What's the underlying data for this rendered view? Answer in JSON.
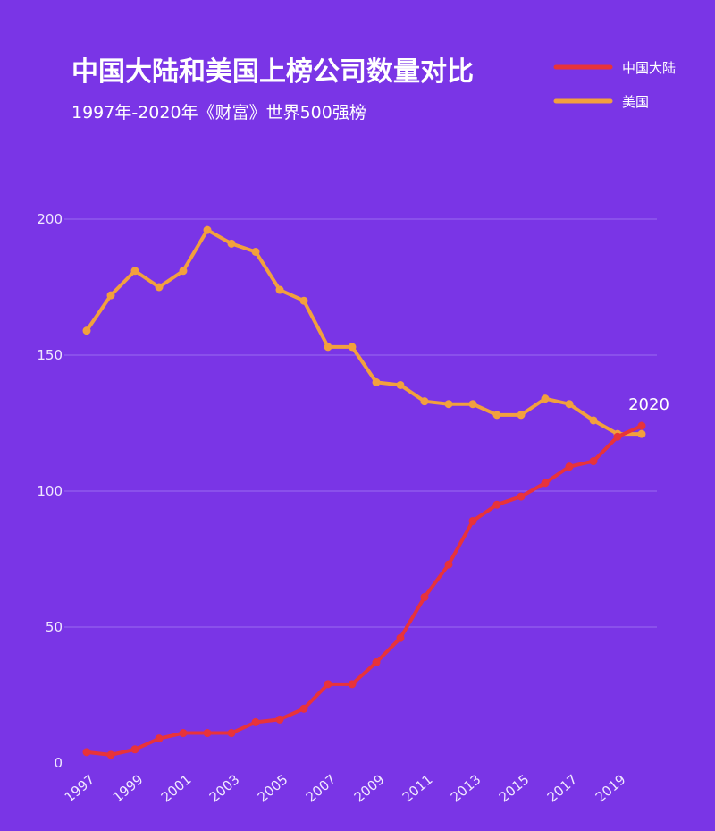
{
  "chart_data": {
    "type": "line",
    "title": "中国大陆和美国上榜公司数量对比",
    "subtitle": "1997年-2020年《财富》世界500强榜",
    "x": [
      1997,
      1998,
      1999,
      2000,
      2001,
      2002,
      2003,
      2004,
      2005,
      2006,
      2007,
      2008,
      2009,
      2010,
      2011,
      2012,
      2013,
      2014,
      2015,
      2016,
      2017,
      2018,
      2019,
      2020
    ],
    "x_tick_labels": [
      "1997",
      "1999",
      "2001",
      "2003",
      "2005",
      "2007",
      "2009",
      "2011",
      "2013",
      "2015",
      "2017",
      "2019"
    ],
    "y_ticks": [
      0,
      50,
      100,
      150,
      200
    ],
    "ylim": [
      0,
      205
    ],
    "grid": true,
    "legend_position": "top-right",
    "annotation": "2020",
    "series": [
      {
        "name": "中国大陆",
        "color": "#e8333a",
        "values": [
          4,
          3,
          5,
          9,
          11,
          11,
          11,
          15,
          16,
          20,
          29,
          29,
          37,
          46,
          61,
          73,
          89,
          95,
          98,
          103,
          109,
          111,
          120,
          124
        ]
      },
      {
        "name": "美国",
        "color": "#f2a03d",
        "values": [
          159,
          172,
          181,
          175,
          181,
          196,
          191,
          188,
          174,
          170,
          153,
          153,
          140,
          139,
          133,
          132,
          132,
          128,
          128,
          134,
          132,
          126,
          121,
          121
        ]
      }
    ]
  }
}
